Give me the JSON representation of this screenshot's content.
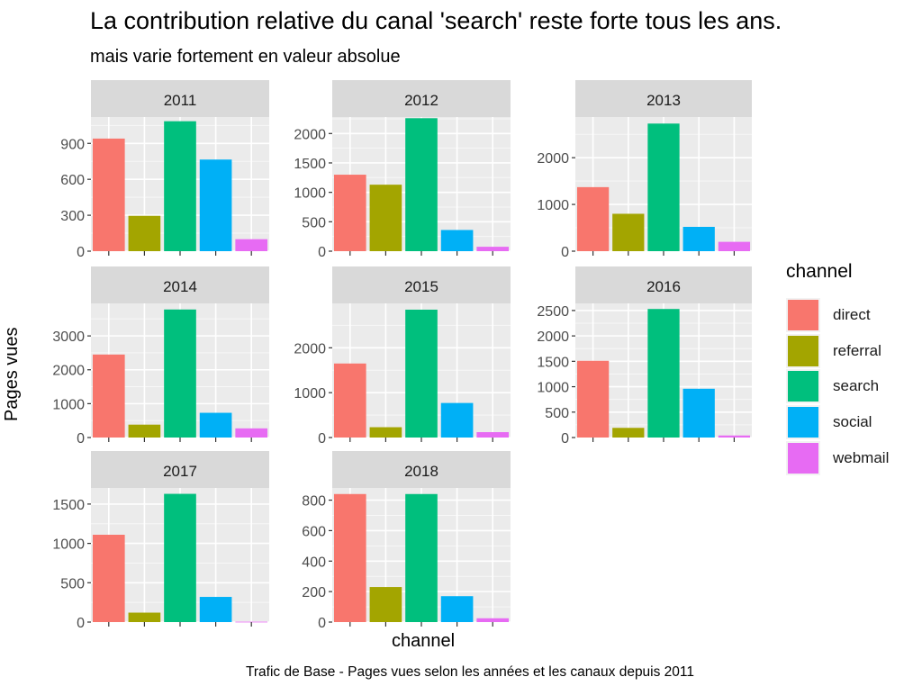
{
  "chart_data": {
    "type": "bar",
    "title": "La contribution relative du canal 'search' reste forte tous les ans.",
    "subtitle": "mais varie fortement en valeur absolue",
    "xlabel": "channel",
    "ylabel": "Pages vues",
    "caption": "Trafic de Base - Pages vues selon les années et les canaux depuis 2011",
    "legend_title": "channel",
    "legend_position": "right",
    "grid": true,
    "facet_by": "year",
    "categories": [
      "direct",
      "referral",
      "search",
      "social",
      "webmail"
    ],
    "colors": {
      "direct": "#F8766D",
      "referral": "#A3A500",
      "search": "#00BF7D",
      "social": "#00B0F6",
      "webmail": "#E76BF3"
    },
    "facets": [
      {
        "label": "2011",
        "values": [
          940,
          295,
          1085,
          765,
          100
        ],
        "ylim": [
          0,
          1120
        ],
        "yticks": [
          0,
          300,
          600,
          900
        ]
      },
      {
        "label": "2012",
        "values": [
          1300,
          1130,
          2260,
          360,
          75
        ],
        "ylim": [
          0,
          2280
        ],
        "yticks": [
          0,
          500,
          1000,
          1500,
          2000
        ]
      },
      {
        "label": "2013",
        "values": [
          1370,
          800,
          2730,
          520,
          200
        ],
        "ylim": [
          0,
          2870
        ],
        "yticks": [
          0,
          1000,
          2000
        ]
      },
      {
        "label": "2014",
        "values": [
          2450,
          380,
          3780,
          730,
          270
        ],
        "ylim": [
          0,
          3960
        ],
        "yticks": [
          0,
          1000,
          2000,
          3000
        ]
      },
      {
        "label": "2015",
        "values": [
          1650,
          230,
          2850,
          770,
          120
        ],
        "ylim": [
          0,
          2990
        ],
        "yticks": [
          0,
          1000,
          2000
        ]
      },
      {
        "label": "2016",
        "values": [
          1510,
          190,
          2530,
          960,
          40
        ],
        "ylim": [
          0,
          2640
        ],
        "yticks": [
          0,
          500,
          1000,
          1500,
          2000,
          2500
        ]
      },
      {
        "label": "2017",
        "values": [
          1110,
          120,
          1630,
          320,
          5
        ],
        "ylim": [
          0,
          1705
        ],
        "yticks": [
          0,
          500,
          1000,
          1500
        ]
      },
      {
        "label": "2018",
        "values": [
          840,
          230,
          840,
          170,
          25
        ],
        "ylim": [
          0,
          880
        ],
        "yticks": [
          0,
          200,
          400,
          600,
          800
        ]
      }
    ]
  }
}
